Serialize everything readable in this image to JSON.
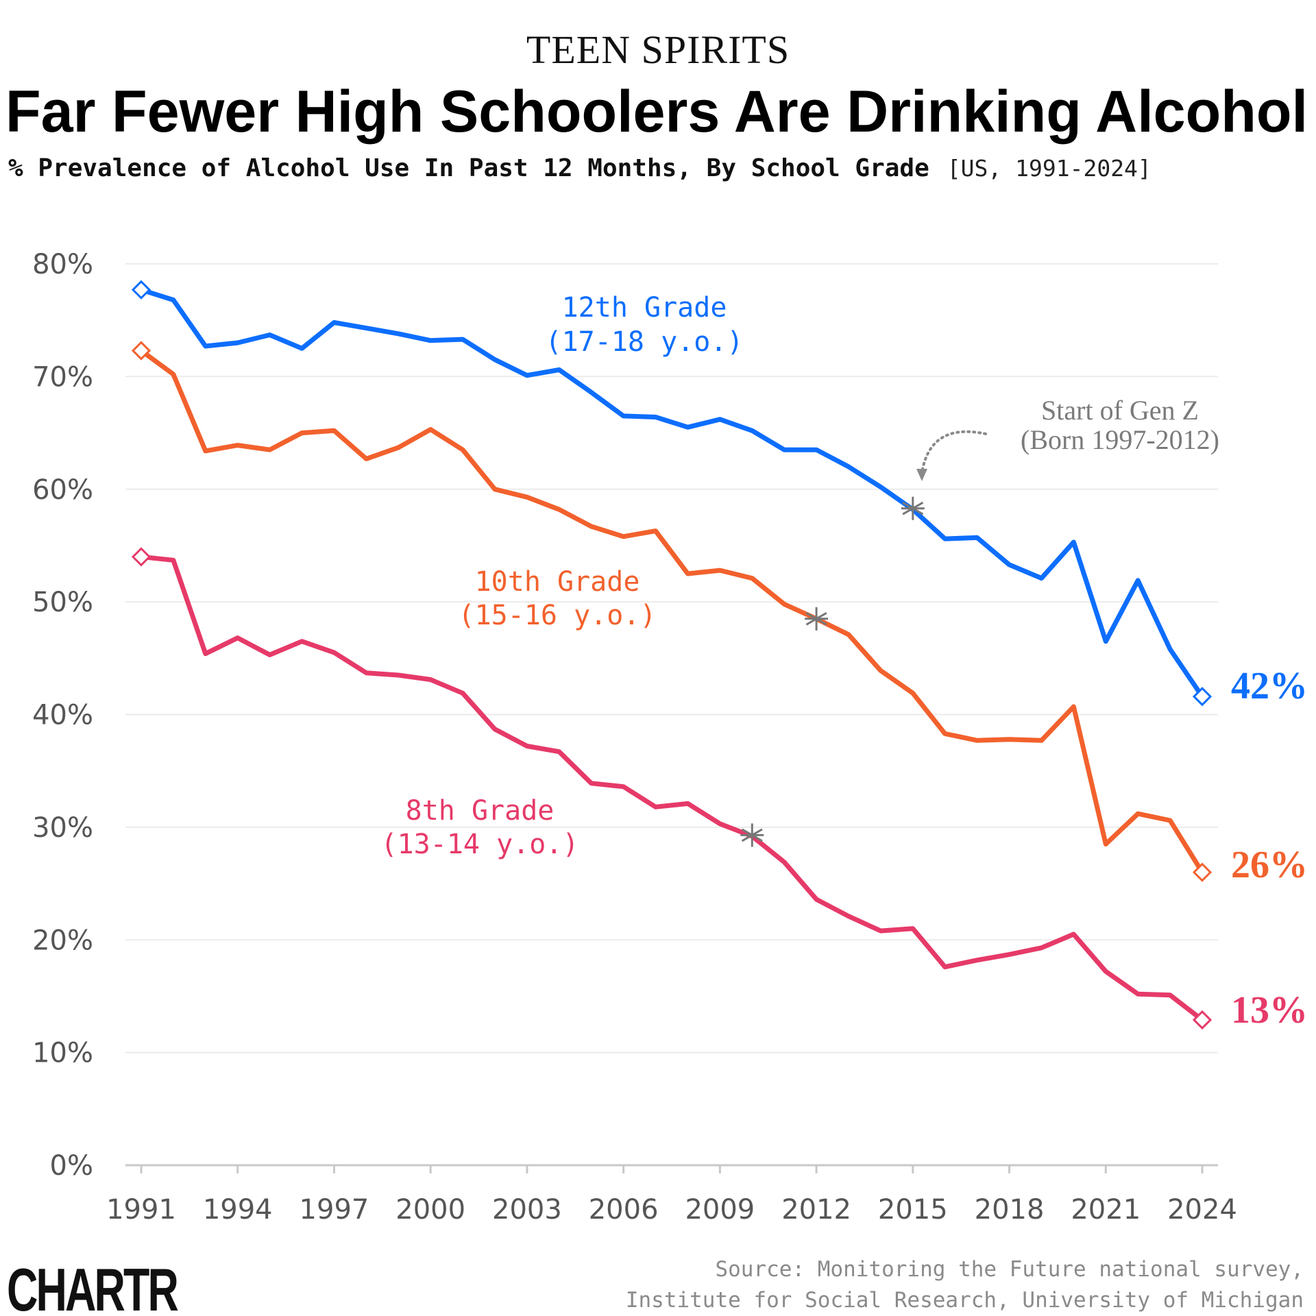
{
  "header": {
    "kicker": "TEEN SPIRITS",
    "title": "Far Fewer High Schoolers Are Drinking Alcohol",
    "subtitle_bold": "% Prevalence of Alcohol Use In Past 12 Months, By School Grade",
    "subtitle_light": "[US, 1991-2024]"
  },
  "chart_data": {
    "type": "line",
    "title": "Far Fewer High Schoolers Are Drinking Alcohol",
    "subtitle": "% Prevalence of Alcohol Use In Past 12 Months, By School Grade [US, 1991-2024]",
    "xlabel": "",
    "ylabel": "",
    "x": [
      1991,
      1992,
      1993,
      1994,
      1995,
      1996,
      1997,
      1998,
      1999,
      2000,
      2001,
      2002,
      2003,
      2004,
      2005,
      2006,
      2007,
      2008,
      2009,
      2010,
      2011,
      2012,
      2013,
      2014,
      2015,
      2016,
      2017,
      2018,
      2019,
      2020,
      2021,
      2022,
      2023,
      2024
    ],
    "x_ticks": [
      "1991",
      "1994",
      "1997",
      "2000",
      "2003",
      "2006",
      "2009",
      "2012",
      "2015",
      "2018",
      "2021",
      "2024"
    ],
    "y_ticks": [
      "0%",
      "10%",
      "20%",
      "30%",
      "40%",
      "50%",
      "60%",
      "70%",
      "80%"
    ],
    "xlim": [
      1991,
      2024.5
    ],
    "ylim": [
      0,
      80
    ],
    "grid": true,
    "legend": "none (direct labels on lines)",
    "series": [
      {
        "name": "12th Grade",
        "label_line1": "12th Grade",
        "label_line2": "(17-18 y.o.)",
        "color": "#0d6efd",
        "values": [
          77.7,
          76.8,
          72.7,
          73.0,
          73.7,
          72.5,
          74.8,
          74.3,
          73.8,
          73.2,
          73.3,
          71.5,
          70.1,
          70.6,
          68.6,
          66.5,
          66.4,
          65.5,
          66.2,
          65.2,
          63.5,
          63.5,
          62.0,
          60.2,
          58.2,
          55.6,
          55.7,
          53.3,
          52.1,
          55.3,
          46.5,
          51.9,
          45.8,
          41.6
        ],
        "end_label": "42%"
      },
      {
        "name": "10th Grade",
        "label_line1": "10th Grade",
        "label_line2": "(15-16 y.o.)",
        "color": "#f2612d",
        "values": [
          72.3,
          70.2,
          63.4,
          63.9,
          63.5,
          65.0,
          65.2,
          62.7,
          63.7,
          65.3,
          63.5,
          60.0,
          59.3,
          58.2,
          56.7,
          55.8,
          56.3,
          52.5,
          52.8,
          52.1,
          49.8,
          48.5,
          47.1,
          43.9,
          41.9,
          38.3,
          37.7,
          37.8,
          37.7,
          40.7,
          28.5,
          31.2,
          30.6,
          26.0
        ],
        "end_label": "26%"
      },
      {
        "name": "8th Grade",
        "label_line1": "8th Grade",
        "label_line2": "(13-14 y.o.)",
        "color": "#e63a69",
        "values": [
          54.0,
          53.7,
          45.4,
          46.8,
          45.3,
          46.5,
          45.5,
          43.7,
          43.5,
          43.1,
          41.9,
          38.7,
          37.2,
          36.7,
          33.9,
          33.6,
          31.8,
          32.1,
          30.3,
          29.2,
          26.9,
          23.6,
          22.1,
          20.8,
          21.0,
          17.6,
          18.2,
          18.7,
          19.3,
          20.5,
          17.2,
          15.2,
          15.1,
          12.9
        ],
        "end_label": "13%"
      }
    ],
    "annotations": [
      {
        "text_line1": "Start of Gen Z",
        "text_line2": "(Born 1997-2012)",
        "color": "#7a7a7a"
      }
    ],
    "genz_markers": [
      {
        "series": "12th Grade",
        "x": 2015.0,
        "y": 58.3
      },
      {
        "series": "10th Grade",
        "x": 2012.0,
        "y": 48.5
      },
      {
        "series": "8th Grade",
        "x": 2010.0,
        "y": 29.3
      }
    ]
  },
  "footer": {
    "source_line1": "Source: Monitoring the Future national survey,",
    "source_line2": "Institute for Social Research, University of Michigan",
    "logo": "CHARTR"
  }
}
